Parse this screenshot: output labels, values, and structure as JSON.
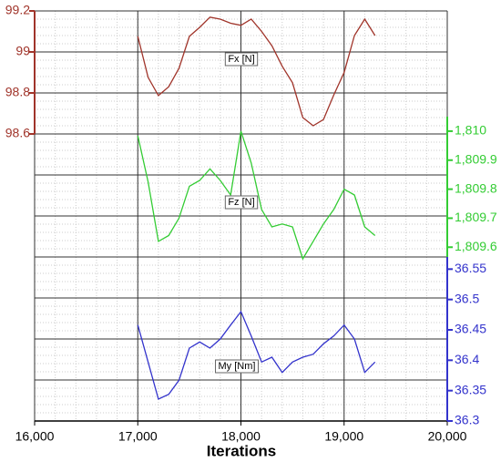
{
  "chart_data": [
    {
      "type": "line",
      "axis_side": "left",
      "xlim": [
        16000,
        20000
      ],
      "x": [
        17000,
        17100,
        17200,
        17300,
        17400,
        17500,
        17600,
        17700,
        17800,
        17900,
        18000,
        18100,
        18200,
        18300,
        18400,
        18500,
        18600,
        18700,
        18800,
        18900,
        19000,
        19100,
        19200,
        19300
      ],
      "series": [
        {
          "name": "Fx [N]",
          "color": "#a0342a",
          "values": [
            99.076,
            98.876,
            98.787,
            98.83,
            98.92,
            99.076,
            99.12,
            99.17,
            99.16,
            99.14,
            99.13,
            99.16,
            99.1,
            99.03,
            98.93,
            98.85,
            98.68,
            98.64,
            98.67,
            98.79,
            98.9,
            99.08,
            99.16,
            99.08
          ]
        }
      ],
      "ylim": [
        98.6,
        99.2
      ],
      "yticks": [
        98.6,
        98.8,
        99,
        99.2
      ]
    },
    {
      "type": "line",
      "axis_side": "right",
      "xlim": [
        16000,
        20000
      ],
      "x": [
        17000,
        17100,
        17200,
        17300,
        17400,
        17500,
        17600,
        17700,
        17800,
        17900,
        18000,
        18100,
        18200,
        18300,
        18400,
        18500,
        18600,
        18700,
        18800,
        18900,
        19000,
        19100,
        19200,
        19300
      ],
      "series": [
        {
          "name": "Fz [N]",
          "color": "#33cc33",
          "values": [
            1809.984,
            1809.825,
            1809.62,
            1809.64,
            1809.7,
            1809.81,
            1809.83,
            1809.87,
            1809.83,
            1809.78,
            1810.0,
            1809.89,
            1809.73,
            1809.67,
            1809.68,
            1809.67,
            1809.56,
            1809.62,
            1809.68,
            1809.73,
            1809.8,
            1809.78,
            1809.67,
            1809.64
          ]
        }
      ],
      "ylim": [
        1809.56,
        1810.05
      ],
      "yticks": [
        {
          "value": 1809.6,
          "label": "1,809.6"
        },
        {
          "value": 1809.7,
          "label": "1,809.7"
        },
        {
          "value": 1809.8,
          "label": "1,809.8"
        },
        {
          "value": 1809.9,
          "label": "1,809.9"
        },
        {
          "value": 1810,
          "label": "1,810"
        }
      ]
    },
    {
      "type": "line",
      "axis_side": "right",
      "xlim": [
        16000,
        20000
      ],
      "x": [
        17000,
        17100,
        17200,
        17300,
        17400,
        17500,
        17600,
        17700,
        17800,
        17900,
        18000,
        18100,
        18200,
        18300,
        18400,
        18500,
        18600,
        18700,
        18800,
        18900,
        19000,
        19100,
        19200,
        19300
      ],
      "series": [
        {
          "name": "My [Nm]",
          "color": "#3333cc",
          "values": [
            36.458,
            36.397,
            36.336,
            36.344,
            36.367,
            36.42,
            36.43,
            36.42,
            36.435,
            36.458,
            36.48,
            36.44,
            36.397,
            36.405,
            36.38,
            36.397,
            36.405,
            36.41,
            36.427,
            36.44,
            36.458,
            36.435,
            36.38,
            36.397
          ]
        }
      ],
      "ylim": [
        36.3,
        36.57
      ],
      "yticks": [
        36.3,
        36.35,
        36.4,
        36.45,
        36.5,
        36.55
      ],
      "xticks": [
        {
          "value": 16000,
          "label": "16,000"
        },
        {
          "value": 17000,
          "label": "17,000"
        },
        {
          "value": 18000,
          "label": "18,000"
        },
        {
          "value": 19000,
          "label": "19,000"
        },
        {
          "value": 20000,
          "label": "20,000"
        }
      ],
      "xlabel": "Iterations"
    }
  ]
}
